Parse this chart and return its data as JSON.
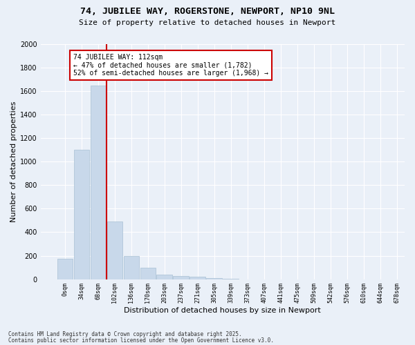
{
  "title": "74, JUBILEE WAY, ROGERSTONE, NEWPORT, NP10 9NL",
  "subtitle": "Size of property relative to detached houses in Newport",
  "xlabel": "Distribution of detached houses by size in Newport",
  "ylabel": "Number of detached properties",
  "bar_color": "#c8d8ea",
  "bar_edge_color": "#a8c0d4",
  "background_color": "#eaf0f8",
  "fig_background_color": "#eaf0f8",
  "grid_color": "#ffffff",
  "bins": [
    "0sqm",
    "34sqm",
    "68sqm",
    "102sqm",
    "136sqm",
    "170sqm",
    "203sqm",
    "237sqm",
    "271sqm",
    "305sqm",
    "339sqm",
    "373sqm",
    "407sqm",
    "441sqm",
    "475sqm",
    "509sqm",
    "542sqm",
    "576sqm",
    "610sqm",
    "644sqm",
    "678sqm"
  ],
  "values": [
    175,
    1100,
    1650,
    490,
    200,
    100,
    40,
    25,
    20,
    10,
    5,
    0,
    0,
    0,
    0,
    0,
    0,
    0,
    0,
    0
  ],
  "ylim": [
    0,
    2000
  ],
  "yticks": [
    0,
    200,
    400,
    600,
    800,
    1000,
    1200,
    1400,
    1600,
    1800,
    2000
  ],
  "property_line_x": 2.5,
  "annotation_title": "74 JUBILEE WAY: 112sqm",
  "annotation_line1": "← 47% of detached houses are smaller (1,782)",
  "annotation_line2": "52% of semi-detached houses are larger (1,968) →",
  "annotation_box_color": "#ffffff",
  "annotation_box_edge": "#cc0000",
  "property_line_color": "#cc0000",
  "footer1": "Contains HM Land Registry data © Crown copyright and database right 2025.",
  "footer2": "Contains public sector information licensed under the Open Government Licence v3.0."
}
